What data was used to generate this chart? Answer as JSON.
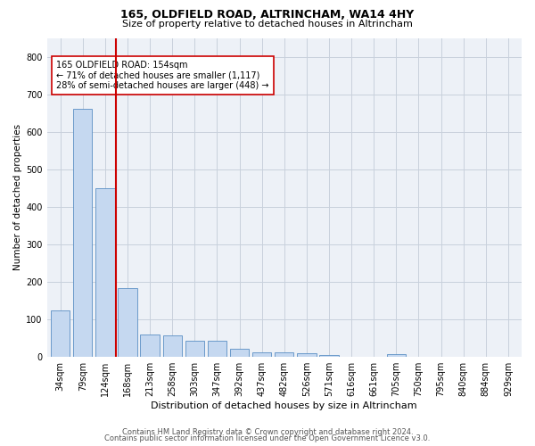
{
  "title1": "165, OLDFIELD ROAD, ALTRINCHAM, WA14 4HY",
  "title2": "Size of property relative to detached houses in Altrincham",
  "xlabel": "Distribution of detached houses by size in Altrincham",
  "ylabel": "Number of detached properties",
  "categories": [
    "34sqm",
    "79sqm",
    "124sqm",
    "168sqm",
    "213sqm",
    "258sqm",
    "303sqm",
    "347sqm",
    "392sqm",
    "437sqm",
    "482sqm",
    "526sqm",
    "571sqm",
    "616sqm",
    "661sqm",
    "705sqm",
    "750sqm",
    "795sqm",
    "840sqm",
    "884sqm",
    "929sqm"
  ],
  "values": [
    125,
    660,
    450,
    183,
    60,
    58,
    43,
    43,
    22,
    12,
    13,
    10,
    6,
    0,
    0,
    8,
    0,
    0,
    0,
    0,
    0
  ],
  "bar_color": "#c5d8f0",
  "bar_edge_color": "#5a8fc4",
  "vline_color": "#cc0000",
  "vline_xindex": 2.5,
  "annotation_line1": "165 OLDFIELD ROAD: 154sqm",
  "annotation_line2": "← 71% of detached houses are smaller (1,117)",
  "annotation_line3": "28% of semi-detached houses are larger (448) →",
  "annotation_box_color": "#ffffff",
  "annotation_box_edge_color": "#cc0000",
  "ylim": [
    0,
    850
  ],
  "yticks": [
    0,
    100,
    200,
    300,
    400,
    500,
    600,
    700,
    800
  ],
  "grid_color": "#c8d0dc",
  "footer1": "Contains HM Land Registry data © Crown copyright and database right 2024.",
  "footer2": "Contains public sector information licensed under the Open Government Licence v3.0.",
  "bg_color": "#edf1f7",
  "title1_fontsize": 9,
  "title2_fontsize": 8,
  "xlabel_fontsize": 8,
  "ylabel_fontsize": 7.5,
  "tick_fontsize": 7,
  "footer_fontsize": 6
}
